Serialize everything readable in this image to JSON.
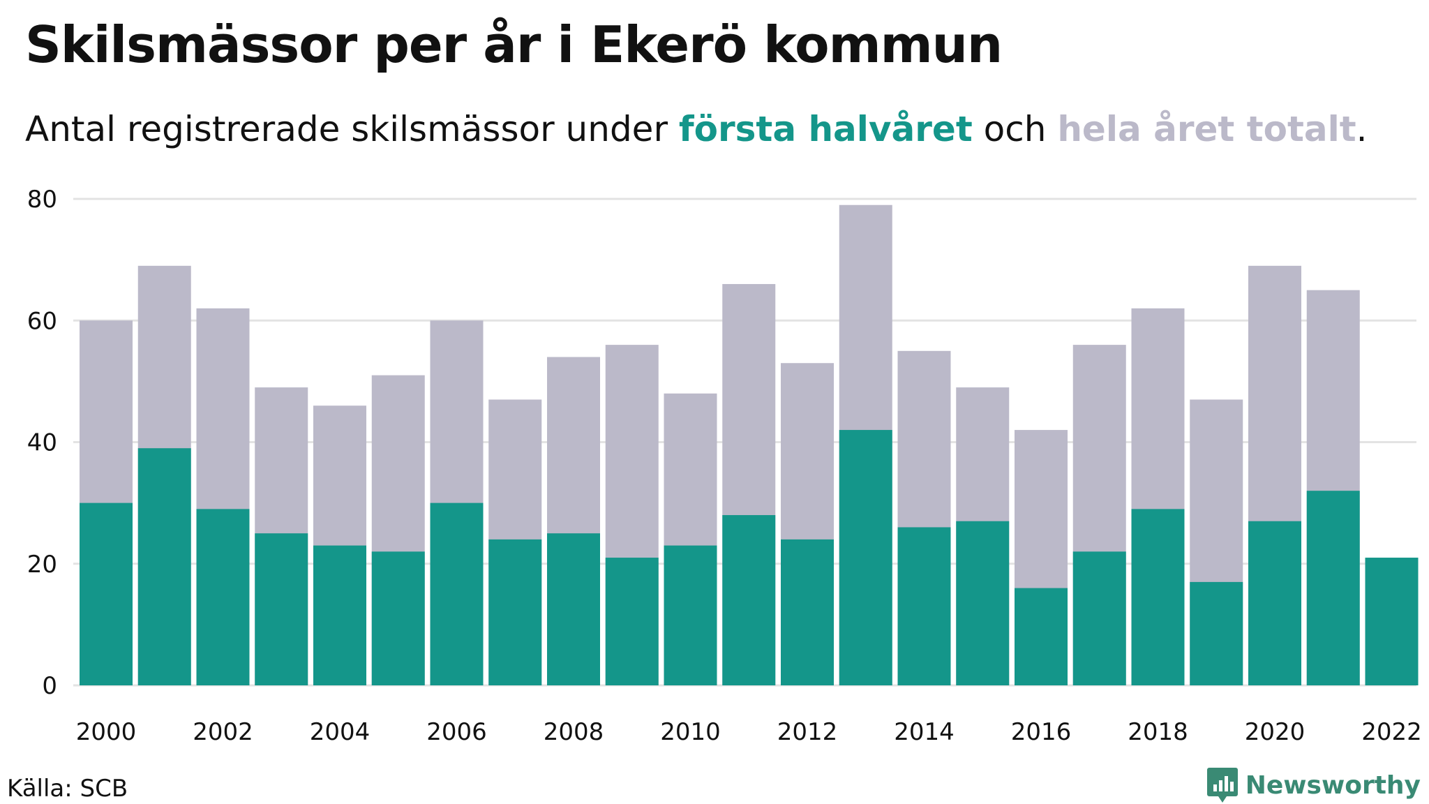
{
  "header": {
    "title": "Skilsmässor per år i Ekerö kommun",
    "subtitle_parts": {
      "prefix": "Antal registrerade skilsmässor under ",
      "highlight1": "första halvåret",
      "middle": " och ",
      "highlight2": "hela året totalt",
      "suffix": "."
    }
  },
  "footer": {
    "source": "Källa: SCB",
    "brand": "Newsworthy"
  },
  "colors": {
    "first_half": "#14968a",
    "full_year": "#bbb9c9",
    "grid": "#e3e3e3",
    "text": "#111111",
    "brand": "#3a8a74"
  },
  "chart_data": {
    "type": "bar",
    "layout": "overlapping",
    "categories": [
      "2000",
      "2001",
      "2002",
      "2003",
      "2004",
      "2005",
      "2006",
      "2007",
      "2008",
      "2009",
      "2010",
      "2011",
      "2012",
      "2013",
      "2014",
      "2015",
      "2016",
      "2017",
      "2018",
      "2019",
      "2020",
      "2021",
      "2022"
    ],
    "x_tick_labels": [
      "2000",
      "2002",
      "2004",
      "2006",
      "2008",
      "2010",
      "2012",
      "2014",
      "2016",
      "2018",
      "2020",
      "2022"
    ],
    "y_ticks": [
      0,
      20,
      40,
      60,
      80
    ],
    "ylim": [
      0,
      80
    ],
    "grid": true,
    "series": [
      {
        "name": "hela året totalt",
        "values": [
          60,
          69,
          62,
          49,
          46,
          51,
          60,
          47,
          54,
          56,
          48,
          66,
          53,
          79,
          55,
          49,
          42,
          56,
          62,
          47,
          69,
          65,
          null
        ]
      },
      {
        "name": "första halvåret",
        "values": [
          30,
          39,
          29,
          25,
          23,
          22,
          30,
          24,
          25,
          21,
          23,
          28,
          24,
          42,
          26,
          27,
          16,
          22,
          29,
          17,
          27,
          32,
          21
        ]
      }
    ]
  }
}
